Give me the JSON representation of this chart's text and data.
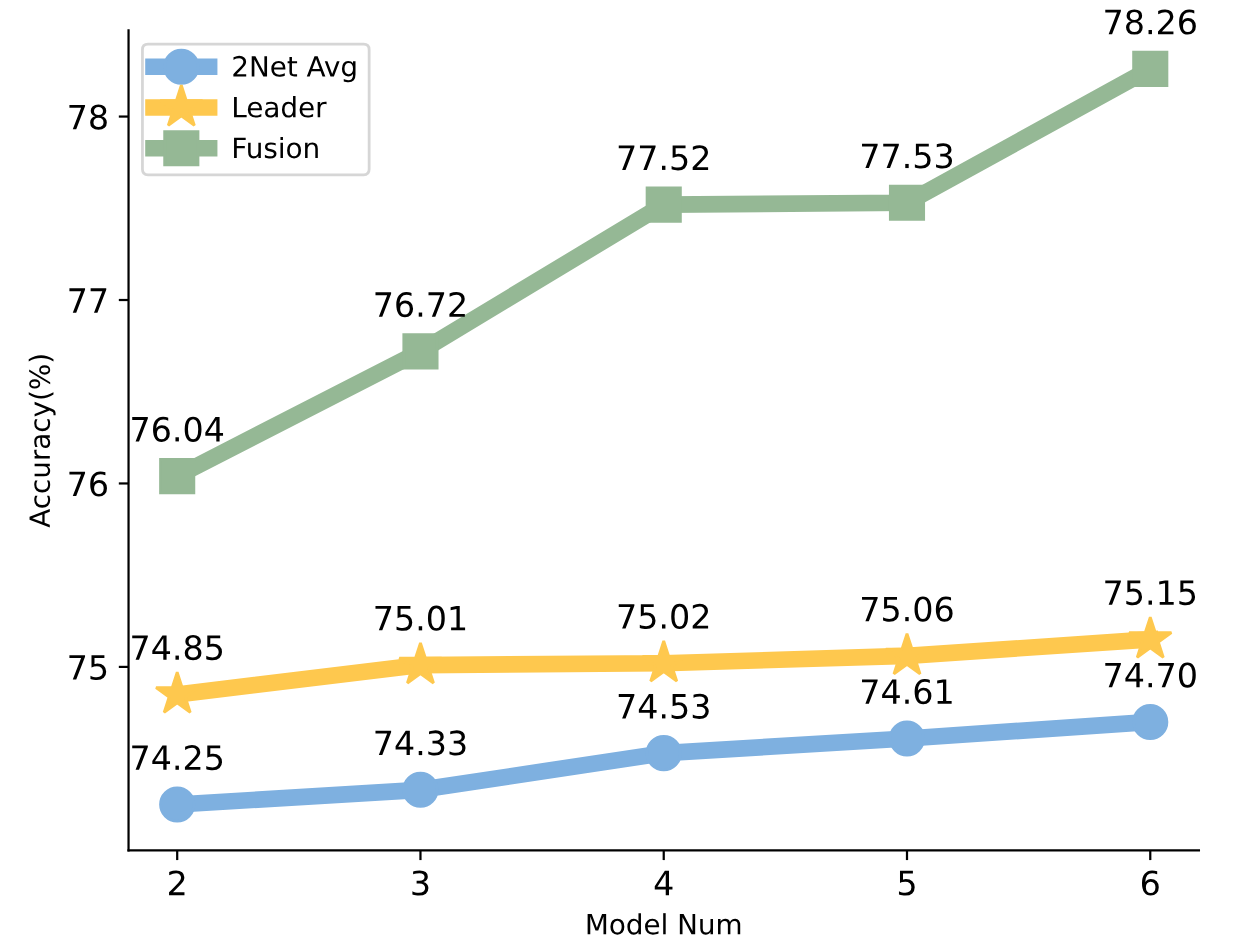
{
  "chart_data": {
    "type": "line",
    "xlabel": "Model Num",
    "ylabel": "Accuracy(%)",
    "x": [
      2,
      3,
      4,
      5,
      6
    ],
    "xlim": [
      1.8,
      6.2
    ],
    "xticks": [
      2,
      3,
      4,
      5,
      6
    ],
    "ylim": [
      74.0,
      78.47
    ],
    "yticks": [
      75,
      76,
      77,
      78
    ],
    "legend": "top left",
    "grid": false,
    "series": [
      {
        "name": "2Net Avg",
        "color": "#7eb0e0",
        "marker": "circle",
        "values": [
          74.25,
          74.33,
          74.53,
          74.61,
          74.7
        ],
        "value_labels": [
          "74.25",
          "74.33",
          "74.53",
          "74.61",
          "74.70"
        ]
      },
      {
        "name": "Leader",
        "color": "#fec84e",
        "marker": "star",
        "values": [
          74.85,
          75.01,
          75.02,
          75.06,
          75.15
        ],
        "value_labels": [
          "74.85",
          "75.01",
          "75.02",
          "75.06",
          "75.15"
        ]
      },
      {
        "name": "Fusion",
        "color": "#95b895",
        "marker": "square",
        "values": [
          76.04,
          76.72,
          77.52,
          77.53,
          78.26
        ],
        "value_labels": [
          "76.04",
          "76.72",
          "77.52",
          "77.53",
          "78.26"
        ]
      }
    ]
  }
}
